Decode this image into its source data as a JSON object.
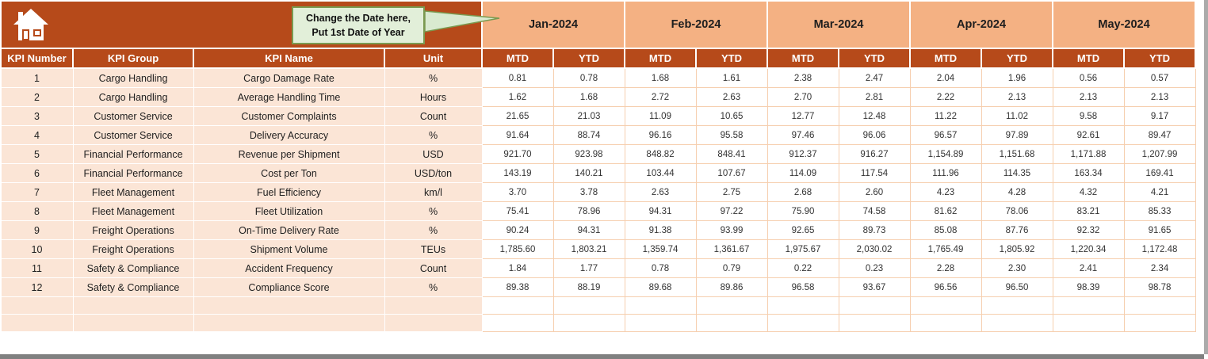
{
  "callout": {
    "line1": "Change the Date here,",
    "line2": "Put 1st Date of Year"
  },
  "table": {
    "left_headers": [
      "KPI Number",
      "KPI Group",
      "KPI Name",
      "Unit"
    ],
    "months": [
      "Jan-2024",
      "Feb-2024",
      "Mar-2024",
      "Apr-2024",
      "May-2024"
    ],
    "sub_headers": [
      "MTD",
      "YTD"
    ],
    "rows": [
      {
        "num": "1",
        "group": "Cargo Handling",
        "name": "Cargo Damage Rate",
        "unit": "%",
        "values": [
          "0.81",
          "0.78",
          "1.68",
          "1.61",
          "2.38",
          "2.47",
          "2.04",
          "1.96",
          "0.56",
          "0.57"
        ]
      },
      {
        "num": "2",
        "group": "Cargo Handling",
        "name": "Average Handling Time",
        "unit": "Hours",
        "values": [
          "1.62",
          "1.68",
          "2.72",
          "2.63",
          "2.70",
          "2.81",
          "2.22",
          "2.13",
          "2.13",
          "2.13"
        ]
      },
      {
        "num": "3",
        "group": "Customer Service",
        "name": "Customer Complaints",
        "unit": "Count",
        "values": [
          "21.65",
          "21.03",
          "11.09",
          "10.65",
          "12.77",
          "12.48",
          "11.22",
          "11.02",
          "9.58",
          "9.17"
        ]
      },
      {
        "num": "4",
        "group": "Customer Service",
        "name": "Delivery Accuracy",
        "unit": "%",
        "values": [
          "91.64",
          "88.74",
          "96.16",
          "95.58",
          "97.46",
          "96.06",
          "96.57",
          "97.89",
          "92.61",
          "89.47"
        ]
      },
      {
        "num": "5",
        "group": "Financial Performance",
        "name": "Revenue per Shipment",
        "unit": "USD",
        "values": [
          "921.70",
          "923.98",
          "848.82",
          "848.41",
          "912.37",
          "916.27",
          "1,154.89",
          "1,151.68",
          "1,171.88",
          "1,207.99"
        ]
      },
      {
        "num": "6",
        "group": "Financial Performance",
        "name": "Cost per Ton",
        "unit": "USD/ton",
        "values": [
          "143.19",
          "140.21",
          "103.44",
          "107.67",
          "114.09",
          "117.54",
          "111.96",
          "114.35",
          "163.34",
          "169.41"
        ]
      },
      {
        "num": "7",
        "group": "Fleet Management",
        "name": "Fuel Efficiency",
        "unit": "km/l",
        "values": [
          "3.70",
          "3.78",
          "2.63",
          "2.75",
          "2.68",
          "2.60",
          "4.23",
          "4.28",
          "4.32",
          "4.21"
        ]
      },
      {
        "num": "8",
        "group": "Fleet Management",
        "name": "Fleet Utilization",
        "unit": "%",
        "values": [
          "75.41",
          "78.96",
          "94.31",
          "97.22",
          "75.90",
          "74.58",
          "81.62",
          "78.06",
          "83.21",
          "85.33"
        ]
      },
      {
        "num": "9",
        "group": "Freight Operations",
        "name": "On-Time Delivery Rate",
        "unit": "%",
        "values": [
          "90.24",
          "94.31",
          "91.38",
          "93.99",
          "92.65",
          "89.73",
          "85.08",
          "87.76",
          "92.32",
          "91.65"
        ]
      },
      {
        "num": "10",
        "group": "Freight Operations",
        "name": "Shipment Volume",
        "unit": "TEUs",
        "values": [
          "1,785.60",
          "1,803.21",
          "1,359.74",
          "1,361.67",
          "1,975.67",
          "2,030.02",
          "1,765.49",
          "1,805.92",
          "1,220.34",
          "1,172.48"
        ]
      },
      {
        "num": "11",
        "group": "Safety & Compliance",
        "name": "Accident Frequency",
        "unit": "Count",
        "values": [
          "1.84",
          "1.77",
          "0.78",
          "0.79",
          "0.22",
          "0.23",
          "2.28",
          "2.30",
          "2.41",
          "2.34"
        ]
      },
      {
        "num": "12",
        "group": "Safety & Compliance",
        "name": "Compliance Score",
        "unit": "%",
        "values": [
          "89.38",
          "88.19",
          "89.68",
          "89.86",
          "96.58",
          "93.67",
          "96.56",
          "96.50",
          "98.39",
          "98.78"
        ]
      }
    ],
    "empty_row_count": 2
  },
  "colors": {
    "header_orange": "#B64A1A",
    "month_salmon": "#F4B183",
    "row_peach": "#FBE5D6",
    "grid_line": "#F6CFAF",
    "callout_green": "#E2EFD9",
    "callout_border": "#7A9A50",
    "chrome_gray": "#808080"
  }
}
